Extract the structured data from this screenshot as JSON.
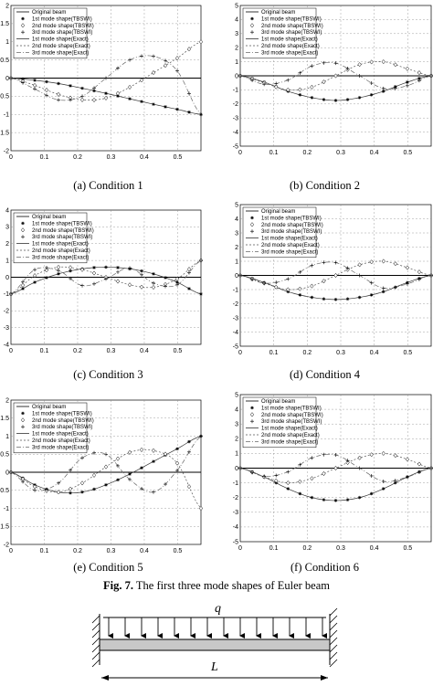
{
  "figure_caption": {
    "prefix": "Fig. 7.",
    "text": " The first three mode shapes of Euler beam"
  },
  "captions": [
    "(a) Condition 1",
    "(b) Condition 2",
    "(c) Condition 3",
    "(d) Condition 4",
    "(e) Condition 5",
    "(f) Condition 6"
  ],
  "beam_diagram": {
    "load_label": "q",
    "length_label": "L"
  },
  "chart_data": [
    {
      "type": "line",
      "title": "",
      "xlabel": "",
      "ylabel": "",
      "xlim": [
        0,
        0.57
      ],
      "ylim": [
        -2,
        2
      ],
      "x_ticks": [
        0,
        0.1,
        0.2,
        0.3,
        0.4,
        0.5
      ],
      "y_ticks": [
        -2,
        -1.5,
        -1,
        -0.5,
        0,
        0.5,
        1,
        1.5,
        2
      ],
      "legend": [
        "Original beam",
        "1st mode shape(TBSWI)",
        "2nd mode shape(TBSWI)",
        "3rd mode shape(TBSWI)",
        "1st mode shape(Exact)",
        "2nd mode shape(Exact)",
        "3rd mode shape(Exact)"
      ],
      "legend_position": "top-left",
      "grid": true,
      "series": [
        {
          "name": "1st mode shape",
          "x": [
            0,
            0.0713,
            0.1425,
            0.2138,
            0.285,
            0.3563,
            0.4275,
            0.4988,
            0.57
          ],
          "y": [
            0,
            -0.06,
            -0.15,
            -0.28,
            -0.42,
            -0.57,
            -0.72,
            -0.86,
            -1.0
          ]
        },
        {
          "name": "2nd mode shape",
          "x": [
            0,
            0.0713,
            0.1425,
            0.2138,
            0.285,
            0.3563,
            0.4275,
            0.4988,
            0.57
          ],
          "y": [
            0,
            -0.2,
            -0.45,
            -0.6,
            -0.55,
            -0.25,
            0.15,
            0.55,
            1.0
          ]
        },
        {
          "name": "3rd mode shape",
          "x": [
            0,
            0.0713,
            0.1425,
            0.2138,
            0.285,
            0.3563,
            0.4275,
            0.4988,
            0.57
          ],
          "y": [
            0,
            -0.3,
            -0.6,
            -0.5,
            0.0,
            0.5,
            0.6,
            0.2,
            -1.0
          ]
        }
      ]
    },
    {
      "type": "line",
      "title": "",
      "xlabel": "",
      "ylabel": "",
      "xlim": [
        0,
        0.57
      ],
      "ylim": [
        -5,
        5
      ],
      "x_ticks": [
        0,
        0.1,
        0.2,
        0.3,
        0.4,
        0.5
      ],
      "y_ticks": [
        -5,
        -4,
        -3,
        -2,
        -1,
        0,
        1,
        2,
        3,
        4,
        5
      ],
      "legend": [
        "Original beam",
        "1st mode shape(TBSWI)",
        "2nd mode shape(TBSWI)",
        "3rd mode shape(TBSWI)",
        "1st mode shape(Exact)",
        "2nd mode shape(Exact)",
        "3rd mode shape(Exact)"
      ],
      "legend_position": "top-left",
      "grid": true,
      "series": [
        {
          "name": "1st mode shape",
          "x": [
            0,
            0.0713,
            0.1425,
            0.2138,
            0.285,
            0.3563,
            0.4275,
            0.4988,
            0.57
          ],
          "y": [
            0,
            -0.45,
            -1.1,
            -1.55,
            -1.75,
            -1.55,
            -1.1,
            -0.45,
            0
          ]
        },
        {
          "name": "2nd mode shape",
          "x": [
            0,
            0.0713,
            0.1425,
            0.2138,
            0.285,
            0.3563,
            0.4275,
            0.4988,
            0.57
          ],
          "y": [
            0,
            -0.5,
            -1.0,
            -0.8,
            0,
            0.8,
            1.0,
            0.5,
            0
          ]
        },
        {
          "name": "3rd mode shape",
          "x": [
            0,
            0.0713,
            0.1425,
            0.2138,
            0.285,
            0.3563,
            0.4275,
            0.4988,
            0.57
          ],
          "y": [
            0,
            -0.6,
            -0.3,
            0.7,
            0.9,
            0.0,
            -0.9,
            -0.7,
            0
          ]
        }
      ]
    },
    {
      "type": "line",
      "title": "",
      "xlabel": "",
      "ylabel": "",
      "xlim": [
        0,
        0.57
      ],
      "ylim": [
        -4,
        4
      ],
      "x_ticks": [
        0,
        0.1,
        0.2,
        0.3,
        0.4,
        0.5
      ],
      "y_ticks": [
        -4,
        -3,
        -2,
        -1,
        0,
        1,
        2,
        3,
        4
      ],
      "legend": [
        "Original beam",
        "1st mode shape(TBSWI)",
        "2nd mode shape(TBSWI)",
        "3rd mode shape(TBSWI)",
        "1st mode shape(Exact)",
        "2nd mode shape(Exact)",
        "3rd mode shape(Exact)"
      ],
      "legend_position": "top-left",
      "grid": true,
      "series": [
        {
          "name": "1st mode shape",
          "x": [
            0,
            0.0713,
            0.1425,
            0.2138,
            0.285,
            0.3563,
            0.4275,
            0.4988,
            0.57
          ],
          "y": [
            -1.0,
            -0.3,
            0.2,
            0.5,
            0.6,
            0.5,
            0.2,
            -0.3,
            -1.0
          ]
        },
        {
          "name": "2nd mode shape",
          "x": [
            0,
            0.0713,
            0.1425,
            0.2138,
            0.285,
            0.3563,
            0.4275,
            0.4988,
            0.57
          ],
          "y": [
            -1.0,
            0.1,
            0.6,
            0.45,
            0.0,
            -0.45,
            -0.6,
            -0.1,
            1.0
          ]
        },
        {
          "name": "3rd mode shape",
          "x": [
            0,
            0.0713,
            0.1425,
            0.2138,
            0.285,
            0.3563,
            0.4275,
            0.4988,
            0.57
          ],
          "y": [
            -1.0,
            0.45,
            0.4,
            -0.5,
            -0.1,
            0.55,
            -0.35,
            -0.45,
            1.0
          ]
        }
      ]
    },
    {
      "type": "line",
      "title": "",
      "xlabel": "",
      "ylabel": "",
      "xlim": [
        0,
        0.57
      ],
      "ylim": [
        -5,
        5
      ],
      "x_ticks": [
        0,
        0.1,
        0.2,
        0.3,
        0.4,
        0.5
      ],
      "y_ticks": [
        -5,
        -4,
        -3,
        -2,
        -1,
        0,
        1,
        2,
        3,
        4,
        5
      ],
      "legend": [
        "Original beam",
        "1st mode shape(TBSWI)",
        "2nd mode shape(TBSWI)",
        "3rd mode shape(TBSWI)",
        "1st mode shape(Exact)",
        "2nd mode shape(Exact)",
        "3rd mode shape(Exact)"
      ],
      "legend_position": "top-left",
      "grid": true,
      "series": [
        {
          "name": "1st mode shape",
          "x": [
            0,
            0.0713,
            0.1425,
            0.2138,
            0.285,
            0.3563,
            0.4275,
            0.4988,
            0.57
          ],
          "y": [
            0,
            -0.5,
            -1.15,
            -1.55,
            -1.7,
            -1.55,
            -1.15,
            -0.5,
            0
          ]
        },
        {
          "name": "2nd mode shape",
          "x": [
            0,
            0.0713,
            0.1425,
            0.2138,
            0.285,
            0.3563,
            0.4275,
            0.4988,
            0.57
          ],
          "y": [
            0,
            -0.55,
            -1.0,
            -0.75,
            0,
            0.75,
            1.0,
            0.55,
            0
          ]
        },
        {
          "name": "3rd mode shape",
          "x": [
            0,
            0.0713,
            0.1425,
            0.2138,
            0.285,
            0.3563,
            0.4275,
            0.4988,
            0.57
          ],
          "y": [
            0,
            -0.55,
            -0.25,
            0.7,
            0.9,
            0.0,
            -0.9,
            -0.6,
            0
          ]
        }
      ]
    },
    {
      "type": "line",
      "title": "",
      "xlabel": "",
      "ylabel": "",
      "xlim": [
        0,
        0.57
      ],
      "ylim": [
        -2,
        2
      ],
      "x_ticks": [
        0,
        0.1,
        0.2,
        0.3,
        0.4,
        0.5
      ],
      "y_ticks": [
        -2,
        -1.5,
        -1,
        -0.5,
        0,
        0.5,
        1,
        1.5,
        2
      ],
      "legend": [
        "Original beam",
        "1st mode shape(TBSWI)",
        "2nd mode shape(TBSWI)",
        "3rd mode shape(TBSWI)",
        "1st mode shape(Exact)",
        "2nd mode shape(Exact)",
        "3rd mode shape(Exact)"
      ],
      "legend_position": "top-left",
      "grid": true,
      "series": [
        {
          "name": "1st mode shape",
          "x": [
            0,
            0.0713,
            0.1425,
            0.2138,
            0.285,
            0.3563,
            0.4275,
            0.4988,
            0.57
          ],
          "y": [
            0,
            -0.35,
            -0.55,
            -0.55,
            -0.35,
            -0.05,
            0.3,
            0.65,
            1.0
          ]
        },
        {
          "name": "2nd mode shape",
          "x": [
            0,
            0.0713,
            0.1425,
            0.2138,
            0.285,
            0.3563,
            0.4275,
            0.4988,
            0.57
          ],
          "y": [
            0,
            -0.4,
            -0.55,
            -0.3,
            0.15,
            0.55,
            0.6,
            0.25,
            -1.0
          ]
        },
        {
          "name": "3rd mode shape",
          "x": [
            0,
            0.0713,
            0.1425,
            0.2138,
            0.285,
            0.3563,
            0.4275,
            0.4988,
            0.57
          ],
          "y": [
            0,
            -0.5,
            -0.3,
            0.4,
            0.5,
            -0.2,
            -0.55,
            0.05,
            1.0
          ]
        }
      ]
    },
    {
      "type": "line",
      "title": "",
      "xlabel": "",
      "ylabel": "",
      "xlim": [
        0,
        0.57
      ],
      "ylim": [
        -5,
        5
      ],
      "x_ticks": [
        0,
        0.1,
        0.2,
        0.3,
        0.4,
        0.5
      ],
      "y_ticks": [
        -5,
        -4,
        -3,
        -2,
        -1,
        0,
        1,
        2,
        3,
        4,
        5
      ],
      "legend": [
        "Original beam",
        "1st mode shape(TBSWI)",
        "2nd mode shape(TBSWI)",
        "3rd mode shape(TBSWI)",
        "1st mode shape(Exact)",
        "2nd mode shape(Exact)",
        "3rd mode shape(Exact)"
      ],
      "legend_position": "top-left",
      "grid": true,
      "series": [
        {
          "name": "1st mode shape",
          "x": [
            0,
            0.0713,
            0.1425,
            0.2138,
            0.285,
            0.3563,
            0.4275,
            0.4988,
            0.57
          ],
          "y": [
            0,
            -0.6,
            -1.4,
            -2.0,
            -2.2,
            -2.0,
            -1.4,
            -0.6,
            0
          ]
        },
        {
          "name": "2nd mode shape",
          "x": [
            0,
            0.0713,
            0.1425,
            0.2138,
            0.285,
            0.3563,
            0.4275,
            0.4988,
            0.57
          ],
          "y": [
            0,
            -0.6,
            -1.0,
            -0.7,
            0,
            0.7,
            1.0,
            0.6,
            0
          ]
        },
        {
          "name": "3rd mode shape",
          "x": [
            0,
            0.0713,
            0.1425,
            0.2138,
            0.285,
            0.3563,
            0.4275,
            0.4988,
            0.57
          ],
          "y": [
            0,
            -0.55,
            -0.25,
            0.7,
            0.9,
            0.0,
            -0.9,
            -0.6,
            0
          ]
        }
      ]
    }
  ]
}
